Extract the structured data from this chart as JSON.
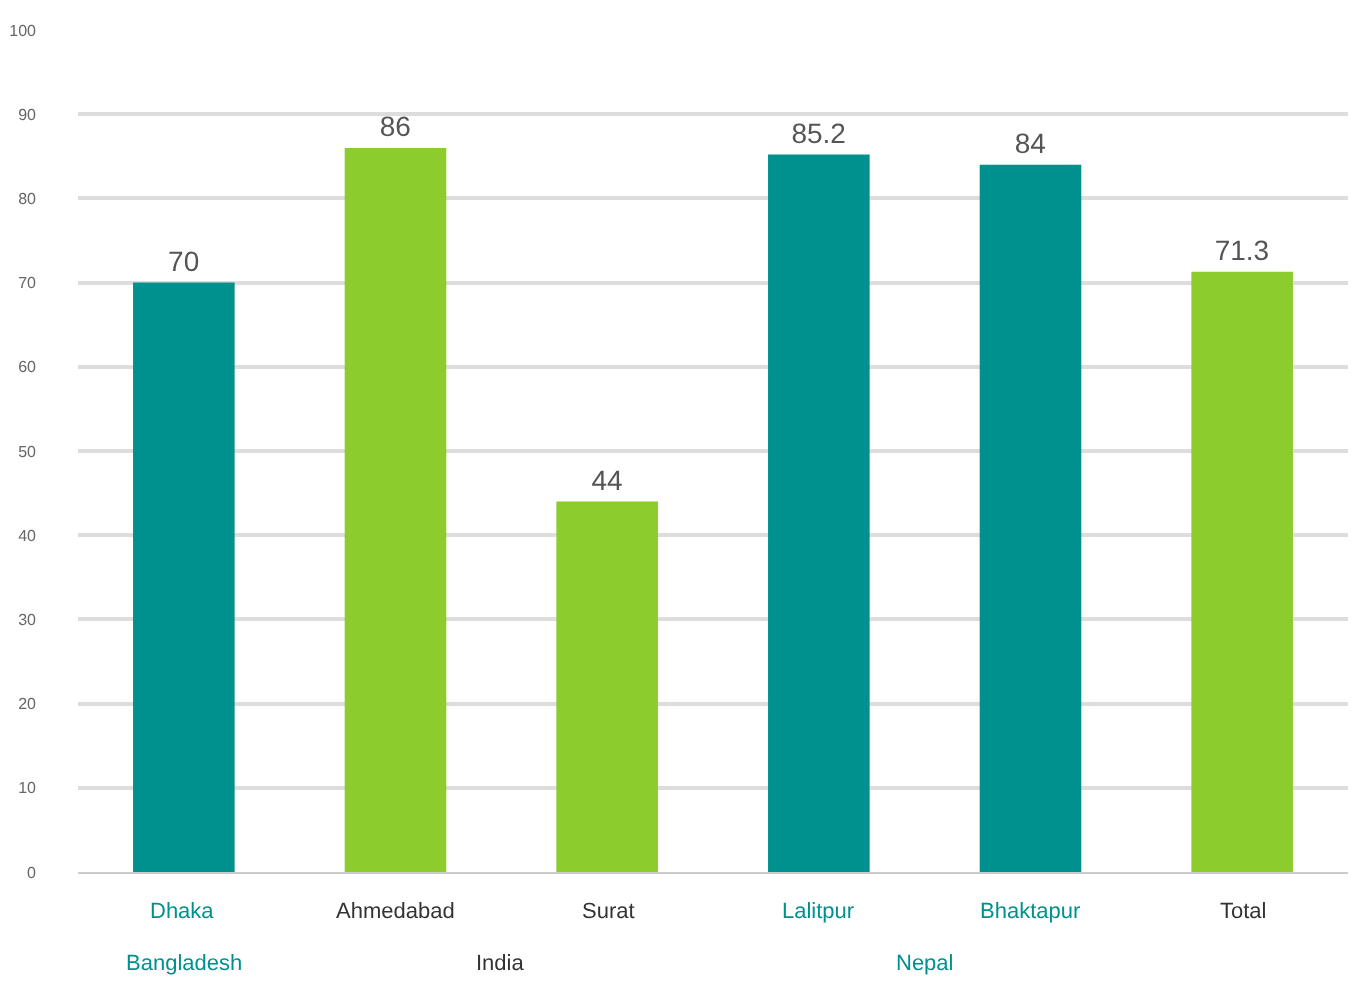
{
  "chart_data": {
    "type": "bar",
    "categories": [
      "Dhaka",
      "Ahmedabad",
      "Surat",
      "Lalitpur",
      "Bhaktapur",
      "Total"
    ],
    "values": [
      70,
      86,
      44,
      85.2,
      84,
      71.3
    ],
    "colors": [
      "#00918e",
      "#8ccc2c",
      "#8ccc2c",
      "#00918e",
      "#00918e",
      "#8ccc2c"
    ],
    "ylim": [
      0,
      100
    ],
    "yticks": [
      0,
      10,
      20,
      30,
      40,
      50,
      60,
      70,
      80,
      90,
      100
    ],
    "grid": "y",
    "data_labels": true,
    "annotations": [
      "Bangladesh",
      "India",
      "Nepal"
    ]
  }
}
